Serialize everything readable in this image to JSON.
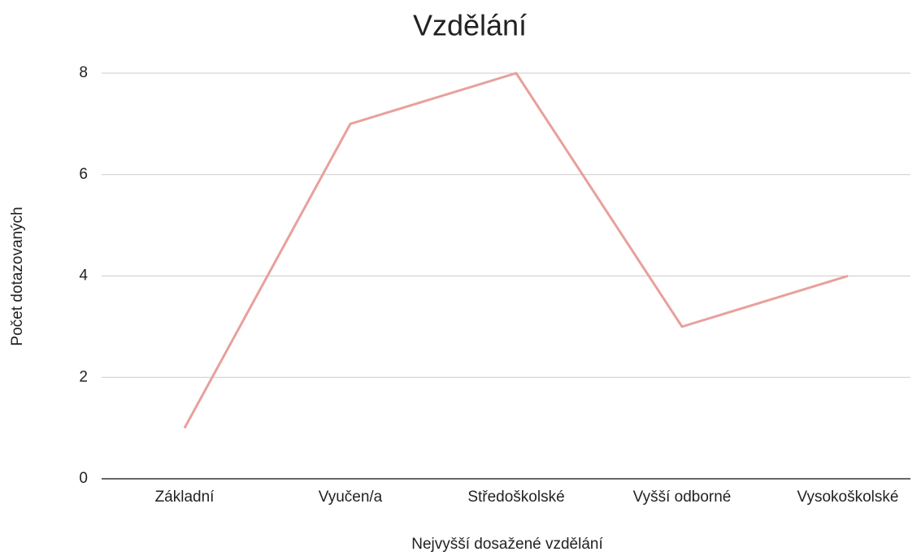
{
  "chart_data": {
    "type": "line",
    "title": "Vzdělání",
    "x_label": "Nejvyšší dosažené vzdělání",
    "y_label": "Počet dotazovaných",
    "categories": [
      "Základní",
      "Vyučen/a",
      "Středoškolské",
      "Vyšší odborné",
      "Vysokoškolské"
    ],
    "values": [
      1,
      7,
      8,
      3,
      4
    ],
    "color": "#e8a09c",
    "ylim": [
      0,
      8
    ],
    "yticks": [
      0,
      2,
      4,
      6,
      8
    ],
    "grid": true
  }
}
